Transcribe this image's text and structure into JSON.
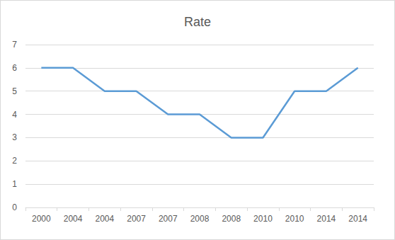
{
  "chart_data": {
    "type": "line",
    "title": "Rate",
    "categories": [
      "2000",
      "2004",
      "2004",
      "2007",
      "2007",
      "2008",
      "2008",
      "2010",
      "2010",
      "2014",
      "2014"
    ],
    "values": [
      6,
      6,
      5,
      5,
      4,
      4,
      3,
      3,
      5,
      5,
      6
    ],
    "color": "#5b9bd5",
    "marker": "none",
    "line_style": "solid",
    "ylim": [
      0,
      7
    ],
    "yticks": [
      0,
      1,
      2,
      3,
      4,
      5,
      6,
      7
    ],
    "grid": true
  }
}
